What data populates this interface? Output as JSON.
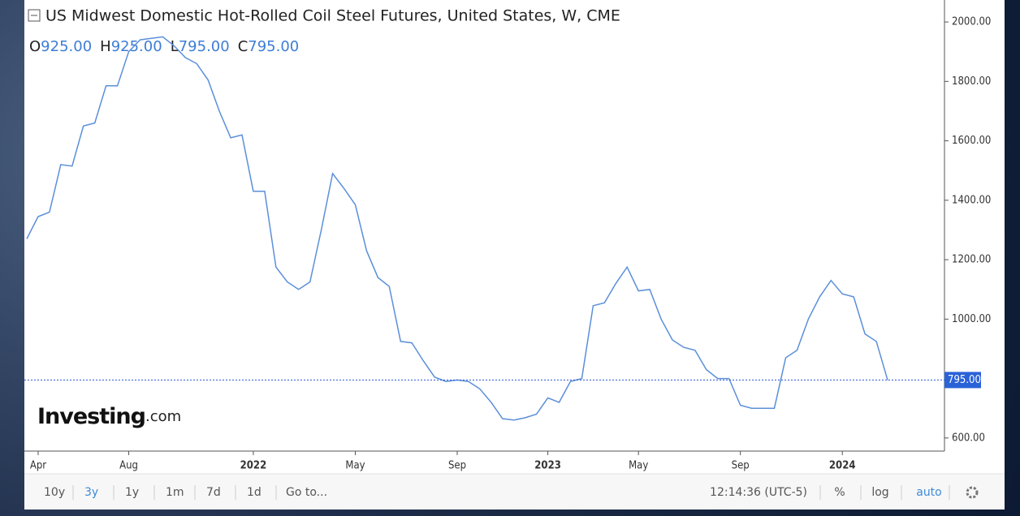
{
  "chart_data": {
    "type": "line",
    "title": "US Midwest Domestic Hot-Rolled Coil Steel Futures, United States, W, CME",
    "ohlc": [
      {
        "key": "O",
        "value": "925.00"
      },
      {
        "key": "H",
        "value": "925.00"
      },
      {
        "key": "L",
        "value": "795.00"
      },
      {
        "key": "C",
        "value": "795.00"
      }
    ],
    "categories": [
      null,
      "Apr",
      null,
      null,
      null,
      null,
      null,
      null,
      null,
      "Aug",
      null,
      null,
      null,
      null,
      null,
      null,
      null,
      null,
      null,
      null,
      "2022",
      null,
      null,
      null,
      null,
      null,
      null,
      null,
      null,
      "May",
      null,
      null,
      null,
      null,
      null,
      null,
      null,
      null,
      "Sep",
      null,
      null,
      null,
      null,
      null,
      null,
      null,
      "2023",
      null,
      null,
      null,
      null,
      null,
      null,
      null,
      "May",
      null,
      null,
      null,
      null,
      null,
      null,
      null,
      null,
      "Sep",
      null,
      null,
      null,
      null,
      null,
      null,
      null,
      null,
      "2024",
      null,
      null,
      null,
      null
    ],
    "values": [
      1270,
      1345,
      1360,
      1520,
      1515,
      1650,
      1660,
      1785,
      1785,
      1900,
      1940,
      1945,
      1950,
      1920,
      1880,
      1860,
      1805,
      1700,
      1610,
      1620,
      1430,
      1430,
      1175,
      1125,
      1100,
      1125,
      1300,
      1490,
      1440,
      1385,
      1230,
      1140,
      1110,
      925,
      920,
      860,
      805,
      790,
      795,
      790,
      765,
      720,
      665,
      660,
      668,
      680,
      735,
      720,
      790,
      800,
      1045,
      1055,
      1120,
      1175,
      1095,
      1100,
      1000,
      930,
      905,
      895,
      830,
      800,
      800,
      710,
      700,
      700,
      700,
      870,
      895,
      1000,
      1075,
      1130,
      1085,
      1075,
      950,
      925,
      795
    ],
    "color": "#5b8fd9",
    "last_label": "795.00",
    "ylim": [
      564,
      2074
    ],
    "yticks": [
      {
        "value": 600,
        "label": "600.00"
      },
      {
        "value": 1000,
        "label": "1000.00"
      },
      {
        "value": 1200,
        "label": "1200.00"
      },
      {
        "value": 1400,
        "label": "1400.00"
      },
      {
        "value": 1600,
        "label": "1600.00"
      },
      {
        "value": 1800,
        "label": "1800.00"
      },
      {
        "value": 2000,
        "label": "2000.00"
      }
    ],
    "grid": false,
    "watermark": {
      "brand": "Investing",
      "suffix": ".com"
    },
    "toolbar": {
      "ranges": [
        "10y",
        "3y",
        "1y",
        "1m",
        "7d",
        "1d"
      ],
      "active_range": 1,
      "goto": "Go to...",
      "time": "12:14:36 (UTC-5)",
      "options": [
        "%",
        "log",
        "auto"
      ],
      "active_option": 2
    }
  }
}
